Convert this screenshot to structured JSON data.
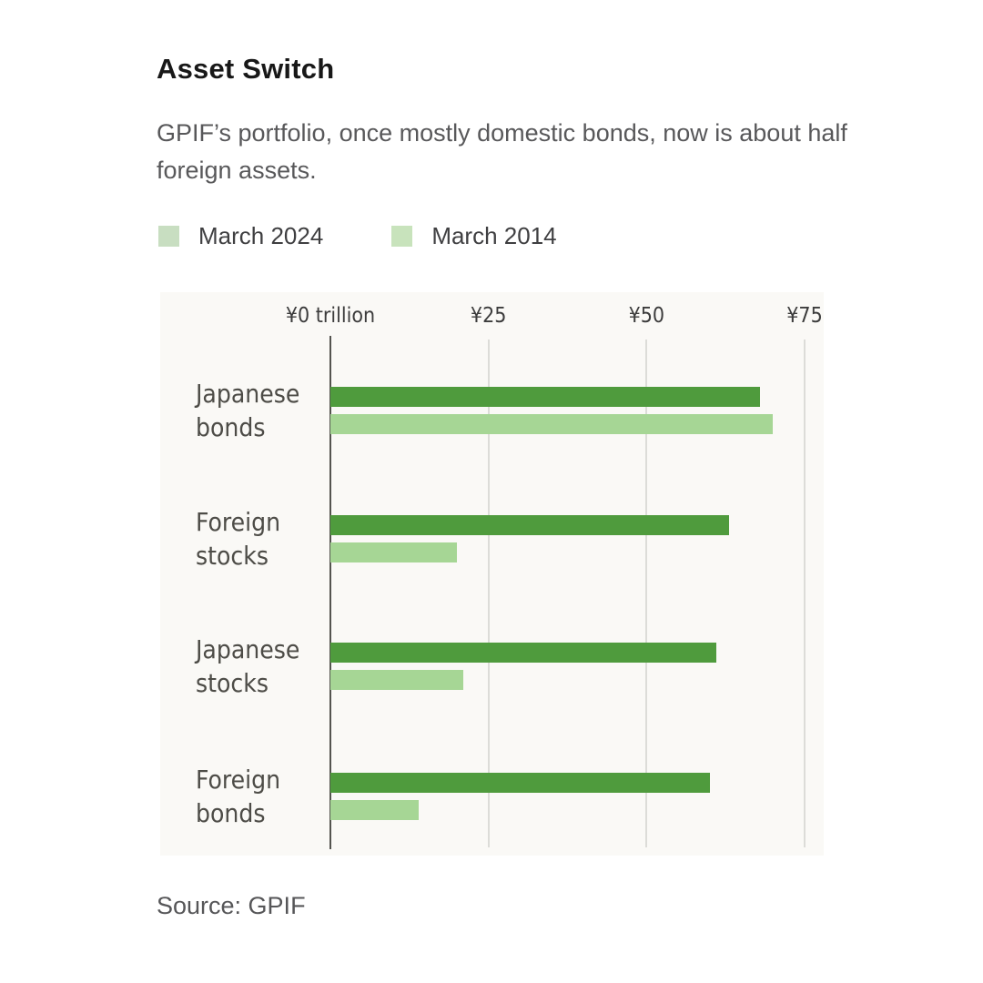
{
  "header": {
    "title": "Asset Switch",
    "subtitle": "GPIF’s portfolio, once mostly domestic bonds, now is about half foreign assets."
  },
  "legend": {
    "items": [
      {
        "label": "March 2024",
        "swatch_color": "#c8dec1"
      },
      {
        "label": "March 2014",
        "swatch_color": "#c8e3bc"
      }
    ]
  },
  "chart_data": {
    "type": "bar",
    "orientation": "horizontal",
    "title": "Asset Switch",
    "xlabel": "¥ trillion",
    "categories": [
      [
        "Japanese",
        "bonds"
      ],
      [
        "Foreign",
        "stocks"
      ],
      [
        "Japanese",
        "stocks"
      ],
      [
        "Foreign",
        "bonds"
      ]
    ],
    "series": [
      {
        "name": "March 2024",
        "color": "#4f9b3d",
        "values": [
          68,
          63,
          61,
          60
        ]
      },
      {
        "name": "March 2014",
        "color": "#a6d695",
        "values": [
          70,
          20,
          21,
          14
        ]
      }
    ],
    "x_ticks": [
      {
        "value": 0,
        "label": "¥0 trillion"
      },
      {
        "value": 25,
        "label": "¥25"
      },
      {
        "value": 50,
        "label": "¥50"
      },
      {
        "value": 75,
        "label": "¥75"
      }
    ],
    "xlim": [
      0,
      78
    ],
    "grid": true,
    "legend_position": "top",
    "axis_color": "#54544f",
    "gridline_color": "#dcdcd8",
    "plot_bg_color": "#faf9f6"
  },
  "footer": {
    "source": "Source: GPIF"
  }
}
